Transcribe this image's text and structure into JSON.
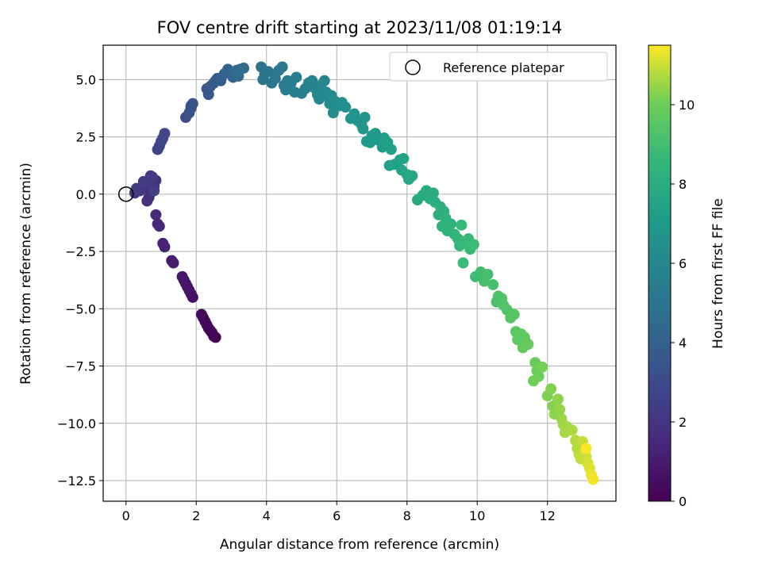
{
  "chart_data": {
    "type": "scatter",
    "title": "FOV centre drift starting at 2023/11/08 01:19:14",
    "xlabel": "Angular distance from reference (arcmin)",
    "ylabel": "Rotation from reference (arcmin)",
    "xlim": [
      -0.65,
      13.95
    ],
    "ylim": [
      -13.4,
      6.5
    ],
    "x_ticks": [
      0,
      2,
      4,
      6,
      8,
      10,
      12
    ],
    "y_ticks": [
      5.0,
      2.5,
      0.0,
      -2.5,
      -5.0,
      -7.5,
      -10.0,
      -12.5
    ],
    "y_tick_labels": [
      "5.0",
      "2.5",
      "0.0",
      "−2.5",
      "−5.0",
      "−7.5",
      "−10.0",
      "−12.5"
    ],
    "grid": true,
    "legend": {
      "position": "top-right",
      "entries": [
        {
          "label": "Reference platepar",
          "marker": "open-circle"
        }
      ]
    },
    "reference_point": {
      "x": 0,
      "y": 0
    },
    "colorbar": {
      "label": "Hours from first FF file",
      "colormap": "viridis",
      "range": [
        0,
        11.5
      ],
      "ticks": [
        0,
        2,
        4,
        6,
        8,
        10
      ]
    },
    "series": [
      {
        "points": [
          [
            2.55,
            -6.25,
            0.0
          ],
          [
            2.5,
            -6.2,
            0.05
          ],
          [
            2.45,
            -6.05,
            0.1
          ],
          [
            2.4,
            -5.95,
            0.15
          ],
          [
            2.35,
            -5.85,
            0.2
          ],
          [
            2.3,
            -5.7,
            0.25
          ],
          [
            2.25,
            -5.55,
            0.3
          ],
          [
            2.2,
            -5.4,
            0.35
          ],
          [
            2.15,
            -5.25,
            0.4
          ],
          [
            1.9,
            -4.5,
            0.55
          ],
          [
            1.85,
            -4.35,
            0.6
          ],
          [
            1.8,
            -4.2,
            0.65
          ],
          [
            1.75,
            -4.05,
            0.7
          ],
          [
            1.7,
            -3.9,
            0.75
          ],
          [
            1.65,
            -3.75,
            0.8
          ],
          [
            1.6,
            -3.6,
            0.85
          ],
          [
            1.35,
            -3.0,
            1.0
          ],
          [
            1.3,
            -2.9,
            1.05
          ],
          [
            1.1,
            -2.3,
            1.2
          ],
          [
            1.05,
            -2.15,
            1.25
          ],
          [
            0.95,
            -1.4,
            1.4
          ],
          [
            0.9,
            -1.3,
            1.45
          ],
          [
            0.85,
            -0.9,
            1.55
          ],
          [
            0.6,
            -0.3,
            1.7
          ],
          [
            0.65,
            -0.15,
            1.75
          ],
          [
            0.7,
            0.05,
            1.8
          ],
          [
            0.75,
            0.2,
            1.85
          ],
          [
            0.8,
            0.35,
            1.9
          ],
          [
            0.85,
            0.6,
            1.95
          ],
          [
            0.7,
            0.8,
            2.0
          ],
          [
            0.55,
            0.5,
            2.05
          ],
          [
            0.45,
            0.3,
            2.1
          ],
          [
            0.4,
            0.15,
            2.15
          ],
          [
            0.25,
            0.05,
            2.2
          ],
          [
            0.3,
            0.25,
            2.25
          ],
          [
            0.5,
            0.55,
            2.3
          ],
          [
            0.75,
            0.75,
            2.35
          ],
          [
            0.8,
            0.15,
            2.4
          ],
          [
            0.9,
            1.95,
            2.6
          ],
          [
            0.95,
            2.1,
            2.65
          ],
          [
            1.0,
            2.3,
            2.7
          ],
          [
            1.05,
            2.45,
            2.75
          ],
          [
            1.1,
            2.65,
            2.8
          ],
          [
            1.7,
            3.35,
            3.1
          ],
          [
            1.8,
            3.55,
            3.15
          ],
          [
            1.85,
            3.75,
            3.2
          ],
          [
            1.9,
            3.95,
            3.25
          ],
          [
            1.85,
            3.85,
            3.3
          ],
          [
            2.3,
            4.6,
            3.5
          ],
          [
            2.35,
            4.35,
            3.55
          ],
          [
            2.4,
            4.7,
            3.6
          ],
          [
            2.5,
            4.85,
            3.65
          ],
          [
            2.55,
            4.95,
            3.7
          ],
          [
            2.6,
            5.05,
            3.75
          ],
          [
            2.7,
            4.95,
            3.85
          ],
          [
            2.8,
            5.25,
            3.95
          ],
          [
            2.9,
            5.45,
            4.05
          ],
          [
            3.0,
            5.3,
            4.15
          ],
          [
            3.05,
            5.1,
            4.2
          ],
          [
            3.15,
            5.4,
            4.3
          ],
          [
            3.25,
            5.45,
            4.4
          ],
          [
            3.35,
            5.5,
            4.5
          ],
          [
            3.2,
            5.15,
            4.55
          ],
          [
            3.85,
            5.55,
            4.9
          ],
          [
            3.95,
            5.25,
            4.95
          ],
          [
            3.9,
            5.0,
            5.0
          ],
          [
            4.05,
            5.35,
            5.05
          ],
          [
            4.15,
            4.85,
            5.1
          ],
          [
            4.25,
            5.05,
            5.15
          ],
          [
            4.35,
            5.4,
            5.2
          ],
          [
            4.45,
            5.55,
            5.25
          ],
          [
            4.5,
            4.75,
            5.3
          ],
          [
            4.55,
            4.55,
            5.35
          ],
          [
            4.6,
            4.95,
            5.4
          ],
          [
            4.7,
            4.85,
            5.45
          ],
          [
            4.8,
            4.45,
            5.5
          ],
          [
            4.85,
            5.1,
            5.55
          ],
          [
            5.0,
            4.4,
            5.6
          ],
          [
            5.1,
            4.6,
            5.65
          ],
          [
            5.2,
            4.85,
            5.7
          ],
          [
            5.3,
            4.95,
            5.8
          ],
          [
            5.35,
            4.65,
            5.85
          ],
          [
            5.45,
            4.35,
            5.9
          ],
          [
            5.5,
            4.15,
            5.95
          ],
          [
            5.55,
            4.75,
            6.0
          ],
          [
            5.65,
            4.95,
            6.05
          ],
          [
            5.7,
            4.45,
            6.1
          ],
          [
            5.75,
            4.25,
            6.15
          ],
          [
            5.8,
            3.95,
            6.2
          ],
          [
            5.85,
            4.3,
            6.25
          ],
          [
            5.9,
            3.55,
            6.3
          ],
          [
            5.95,
            4.05,
            6.35
          ],
          [
            6.05,
            3.85,
            6.4
          ],
          [
            6.15,
            4.0,
            6.45
          ],
          [
            6.25,
            3.8,
            6.5
          ],
          [
            6.4,
            3.3,
            6.6
          ],
          [
            6.5,
            3.5,
            6.65
          ],
          [
            6.6,
            3.2,
            6.7
          ],
          [
            6.7,
            3.05,
            6.75
          ],
          [
            6.8,
            3.35,
            6.8
          ],
          [
            6.75,
            2.85,
            6.85
          ],
          [
            6.85,
            2.3,
            6.9
          ],
          [
            6.95,
            2.25,
            6.95
          ],
          [
            7.0,
            2.55,
            7.0
          ],
          [
            7.1,
            2.65,
            7.05
          ],
          [
            7.2,
            2.35,
            7.1
          ],
          [
            7.3,
            2.05,
            7.15
          ],
          [
            7.35,
            2.45,
            7.2
          ],
          [
            7.45,
            2.25,
            7.25
          ],
          [
            7.55,
            1.95,
            7.3
          ],
          [
            7.5,
            1.25,
            7.35
          ],
          [
            7.65,
            1.3,
            7.4
          ],
          [
            7.8,
            1.5,
            7.45
          ],
          [
            7.85,
            1.05,
            7.5
          ],
          [
            7.9,
            1.55,
            7.55
          ],
          [
            8.0,
            0.85,
            7.6
          ],
          [
            8.05,
            0.65,
            7.65
          ],
          [
            8.15,
            0.8,
            7.7
          ],
          [
            8.3,
            -0.25,
            7.8
          ],
          [
            8.45,
            -0.05,
            7.85
          ],
          [
            8.55,
            0.15,
            7.9
          ],
          [
            8.65,
            -0.2,
            7.95
          ],
          [
            8.75,
            0.05,
            8.0
          ],
          [
            8.8,
            -0.35,
            8.05
          ],
          [
            8.9,
            -0.9,
            8.1
          ],
          [
            8.95,
            -0.55,
            8.15
          ],
          [
            9.05,
            -0.75,
            8.2
          ],
          [
            9.1,
            -1.05,
            8.25
          ],
          [
            9.0,
            -1.4,
            8.3
          ],
          [
            9.15,
            -1.6,
            8.35
          ],
          [
            9.25,
            -1.3,
            8.4
          ],
          [
            9.35,
            -1.75,
            8.45
          ],
          [
            9.45,
            -1.95,
            8.5
          ],
          [
            9.5,
            -2.25,
            8.55
          ],
          [
            9.55,
            -1.35,
            8.6
          ],
          [
            9.65,
            -2.05,
            8.65
          ],
          [
            9.75,
            -1.95,
            8.7
          ],
          [
            9.8,
            -2.4,
            8.75
          ],
          [
            9.6,
            -3.0,
            8.8
          ],
          [
            9.9,
            -2.2,
            8.85
          ],
          [
            9.95,
            -3.6,
            8.9
          ],
          [
            10.1,
            -3.4,
            8.95
          ],
          [
            10.2,
            -3.8,
            9.0
          ],
          [
            10.3,
            -3.5,
            9.05
          ],
          [
            10.45,
            -3.95,
            9.1
          ],
          [
            10.55,
            -4.7,
            9.2
          ],
          [
            10.6,
            -4.45,
            9.25
          ],
          [
            10.7,
            -4.55,
            9.3
          ],
          [
            10.75,
            -4.85,
            9.35
          ],
          [
            10.85,
            -5.05,
            9.4
          ],
          [
            10.95,
            -5.4,
            9.45
          ],
          [
            11.05,
            -5.25,
            9.5
          ],
          [
            11.1,
            -6.0,
            9.55
          ],
          [
            11.15,
            -6.35,
            9.6
          ],
          [
            11.25,
            -6.1,
            9.65
          ],
          [
            11.35,
            -6.25,
            9.7
          ],
          [
            11.3,
            -6.7,
            9.75
          ],
          [
            11.45,
            -6.55,
            9.8
          ],
          [
            11.65,
            -7.35,
            9.9
          ],
          [
            11.7,
            -7.7,
            9.95
          ],
          [
            11.75,
            -7.95,
            10.0
          ],
          [
            11.6,
            -8.15,
            10.05
          ],
          [
            11.85,
            -7.55,
            10.1
          ],
          [
            12.0,
            -8.8,
            10.2
          ],
          [
            12.1,
            -8.5,
            10.25
          ],
          [
            12.15,
            -9.25,
            10.3
          ],
          [
            12.2,
            -9.6,
            10.35
          ],
          [
            12.3,
            -8.95,
            10.4
          ],
          [
            12.35,
            -9.4,
            10.45
          ],
          [
            12.4,
            -9.8,
            10.5
          ],
          [
            12.45,
            -10.05,
            10.55
          ],
          [
            12.55,
            -10.15,
            10.6
          ],
          [
            12.5,
            -10.4,
            10.65
          ],
          [
            12.7,
            -10.3,
            10.7
          ],
          [
            12.8,
            -10.75,
            10.75
          ],
          [
            12.85,
            -11.1,
            10.8
          ],
          [
            12.9,
            -11.35,
            10.85
          ],
          [
            12.95,
            -11.55,
            10.9
          ],
          [
            13.0,
            -10.8,
            10.95
          ],
          [
            13.05,
            -11.25,
            11.0
          ],
          [
            13.1,
            -11.45,
            11.05
          ],
          [
            13.15,
            -11.75,
            11.1
          ],
          [
            13.2,
            -11.95,
            11.2
          ],
          [
            13.25,
            -12.25,
            11.3
          ],
          [
            13.3,
            -12.45,
            11.4
          ],
          [
            13.1,
            -11.1,
            11.45
          ]
        ]
      }
    ]
  }
}
